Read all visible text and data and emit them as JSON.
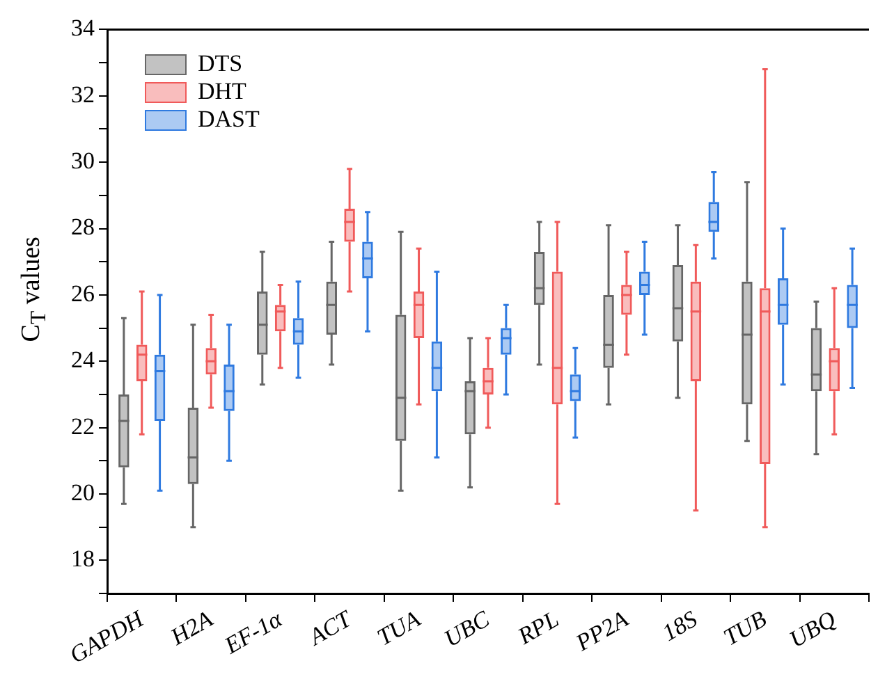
{
  "chart_data": {
    "type": "box",
    "ylabel": "C$_{T}$ values",
    "categories": [
      "GAPDH",
      "H2A",
      "EF-1α",
      "ACT",
      "TUA",
      "UBC",
      "RPL",
      "PP2A",
      "18S",
      "TUB",
      "UBQ"
    ],
    "ylim": [
      17,
      34
    ],
    "yticks": [
      {
        "value": 17,
        "label": null
      },
      18,
      {
        "value": 19,
        "label": null
      },
      20,
      {
        "value": 21,
        "label": null
      },
      22,
      {
        "value": 23,
        "label": null
      },
      24,
      {
        "value": 25,
        "label": null
      },
      26,
      {
        "value": 27,
        "label": null
      },
      28,
      {
        "value": 29,
        "label": null
      },
      30,
      {
        "value": 31,
        "label": null
      },
      32,
      {
        "value": 33,
        "label": null
      },
      34
    ],
    "grid": false,
    "legend": "top left",
    "series": [
      {
        "name": "DTS",
        "color": "#666666",
        "boxes": [
          {
            "low": 19.7,
            "q1": 20.8,
            "median": 22.2,
            "q3": 23.0,
            "high": 25.3
          },
          {
            "low": 19.0,
            "q1": 20.3,
            "median": 21.1,
            "q3": 22.6,
            "high": 25.1
          },
          {
            "low": 23.3,
            "q1": 24.2,
            "median": 25.1,
            "q3": 26.1,
            "high": 27.3
          },
          {
            "low": 23.9,
            "q1": 24.8,
            "median": 25.7,
            "q3": 26.4,
            "high": 27.6
          },
          {
            "low": 20.1,
            "q1": 21.6,
            "median": 22.9,
            "q3": 25.4,
            "high": 27.9
          },
          {
            "low": 20.2,
            "q1": 21.8,
            "median": 23.1,
            "q3": 23.4,
            "high": 24.7
          },
          {
            "low": 23.9,
            "q1": 25.7,
            "median": 26.2,
            "q3": 27.3,
            "high": 28.2
          },
          {
            "low": 22.7,
            "q1": 23.8,
            "median": 24.5,
            "q3": 26.0,
            "high": 28.1
          },
          {
            "low": 22.9,
            "q1": 24.6,
            "median": 25.6,
            "q3": 26.9,
            "high": 28.1
          },
          {
            "low": 21.6,
            "q1": 22.7,
            "median": 24.8,
            "q3": 26.4,
            "high": 29.4
          },
          {
            "low": 21.2,
            "q1": 23.1,
            "median": 23.6,
            "q3": 25.0,
            "high": 25.8
          }
        ]
      },
      {
        "name": "DHT",
        "color": "#f05a5a",
        "boxes": [
          {
            "low": 21.8,
            "q1": 23.4,
            "median": 24.2,
            "q3": 24.5,
            "high": 26.1
          },
          {
            "low": 22.6,
            "q1": 23.6,
            "median": 24.0,
            "q3": 24.4,
            "high": 25.4
          },
          {
            "low": 23.8,
            "q1": 24.9,
            "median": 25.5,
            "q3": 25.7,
            "high": 26.3
          },
          {
            "low": 26.1,
            "q1": 27.6,
            "median": 28.2,
            "q3": 28.6,
            "high": 29.8
          },
          {
            "low": 22.7,
            "q1": 24.7,
            "median": 25.7,
            "q3": 26.1,
            "high": 27.4
          },
          {
            "low": 22.0,
            "q1": 23.0,
            "median": 23.4,
            "q3": 23.8,
            "high": 24.7
          },
          {
            "low": 19.7,
            "q1": 22.7,
            "median": 23.8,
            "q3": 26.7,
            "high": 28.2
          },
          {
            "low": 24.2,
            "q1": 25.4,
            "median": 26.0,
            "q3": 26.3,
            "high": 27.3
          },
          {
            "low": 19.5,
            "q1": 23.4,
            "median": 25.5,
            "q3": 26.4,
            "high": 27.5
          },
          {
            "low": 19.0,
            "q1": 20.9,
            "median": 25.5,
            "q3": 26.2,
            "high": 32.8
          },
          {
            "low": 21.8,
            "q1": 23.1,
            "median": 24.0,
            "q3": 24.4,
            "high": 26.2
          }
        ]
      },
      {
        "name": "DAST",
        "color": "#2f7ae0",
        "boxes": [
          {
            "low": 20.1,
            "q1": 22.2,
            "median": 23.7,
            "q3": 24.2,
            "high": 26.0
          },
          {
            "low": 21.0,
            "q1": 22.5,
            "median": 23.1,
            "q3": 23.9,
            "high": 25.1
          },
          {
            "low": 23.5,
            "q1": 24.5,
            "median": 24.9,
            "q3": 25.3,
            "high": 26.4
          },
          {
            "low": 24.9,
            "q1": 26.5,
            "median": 27.1,
            "q3": 27.6,
            "high": 28.5
          },
          {
            "low": 21.1,
            "q1": 23.1,
            "median": 23.8,
            "q3": 24.6,
            "high": 26.7
          },
          {
            "low": 23.0,
            "q1": 24.2,
            "median": 24.7,
            "q3": 25.0,
            "high": 25.7
          },
          {
            "low": 21.7,
            "q1": 22.8,
            "median": 23.1,
            "q3": 23.6,
            "high": 24.4
          },
          {
            "low": 24.8,
            "q1": 26.0,
            "median": 26.3,
            "q3": 26.7,
            "high": 27.6
          },
          {
            "low": 27.1,
            "q1": 27.9,
            "median": 28.2,
            "q3": 28.8,
            "high": 29.7
          },
          {
            "low": 23.3,
            "q1": 25.1,
            "median": 25.7,
            "q3": 26.5,
            "high": 28.0
          },
          {
            "low": 23.2,
            "q1": 25.0,
            "median": 25.7,
            "q3": 26.3,
            "high": 27.4
          }
        ]
      }
    ]
  }
}
